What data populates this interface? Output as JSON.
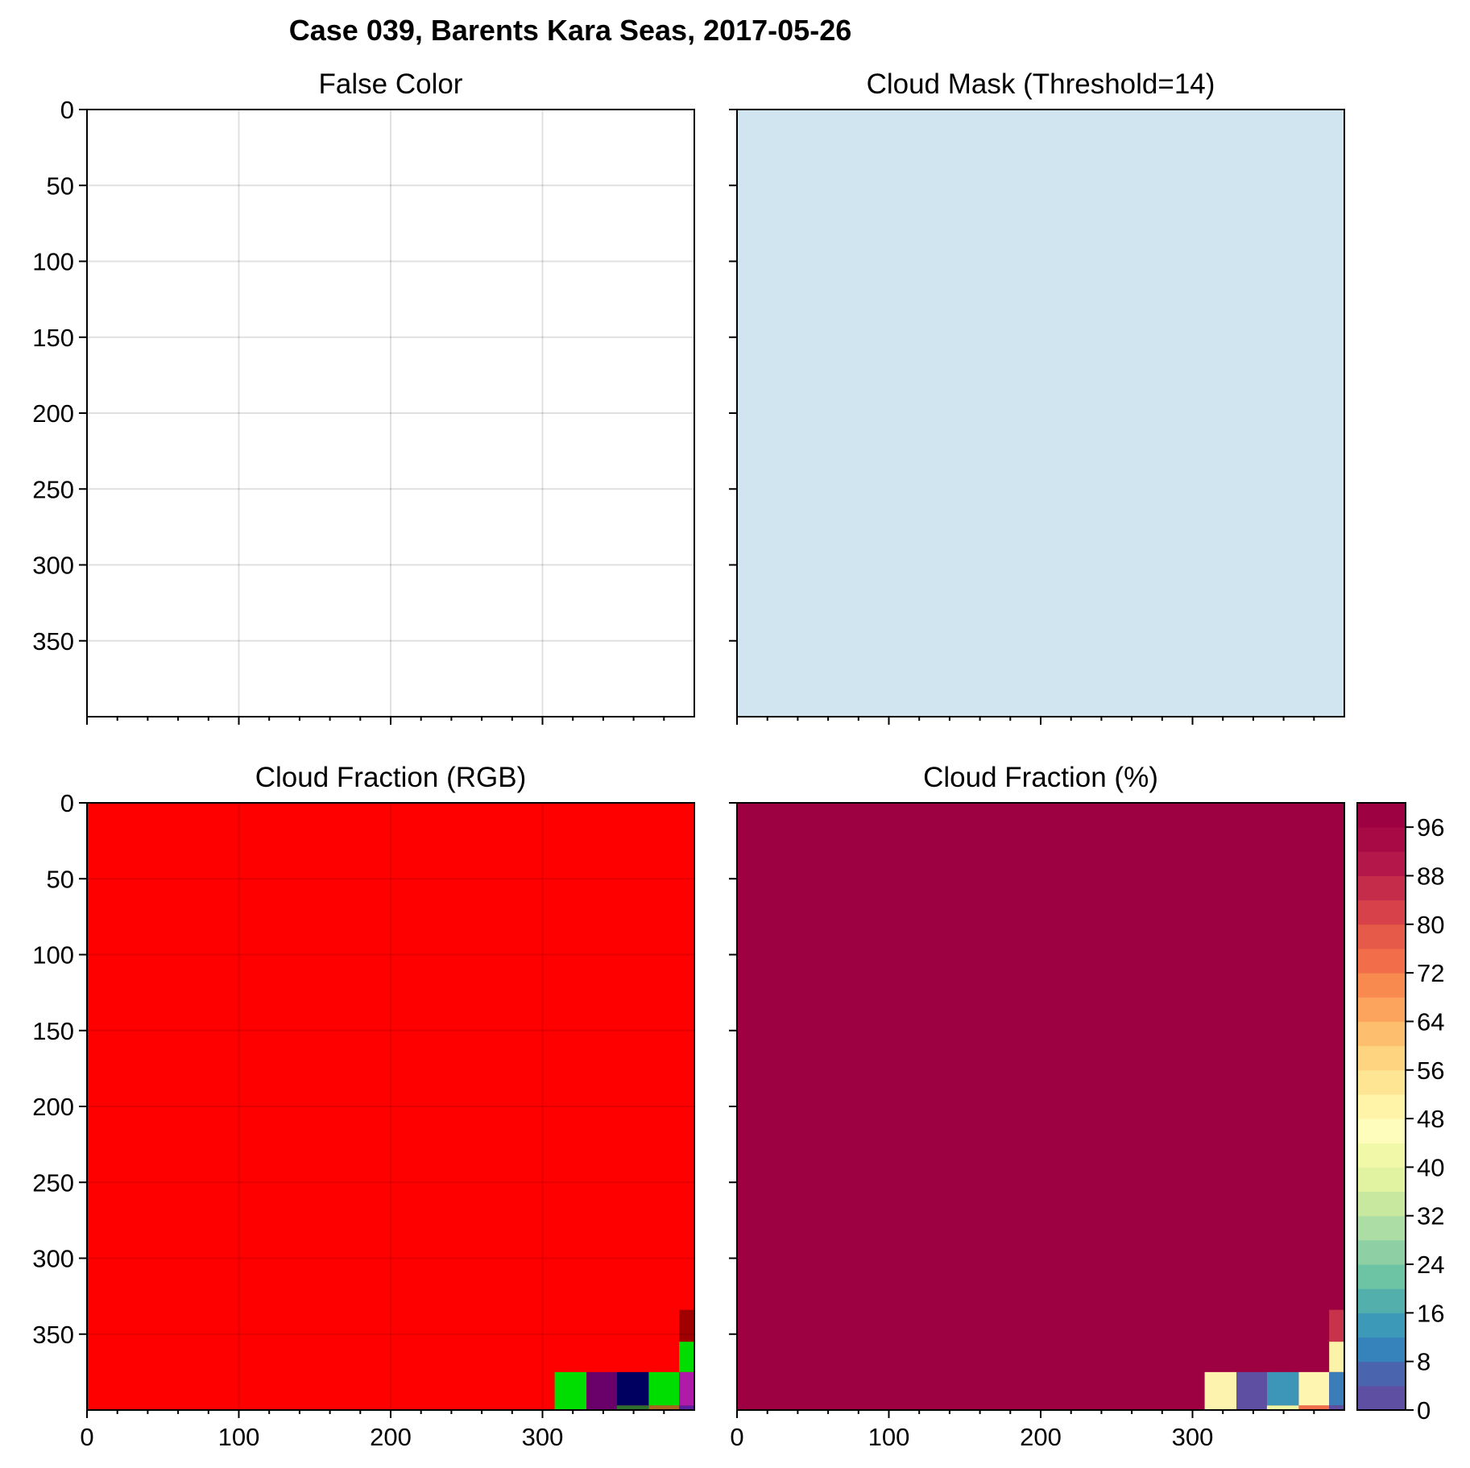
{
  "figure": {
    "title": "Case 039, Barents Kara Seas, 2017-05-26"
  },
  "chart_data": [
    {
      "type": "heatmap",
      "title": "False Color",
      "xlim": [
        0,
        400
      ],
      "ylim": [
        400,
        0
      ],
      "xticks": [
        0,
        100,
        200,
        300
      ],
      "xtick_labels": [],
      "yticks": [
        0,
        50,
        100,
        150,
        200,
        250,
        300,
        350
      ],
      "ytick_labels": [
        "0",
        "50",
        "100",
        "150",
        "200",
        "250",
        "300",
        "350"
      ],
      "grid": true,
      "background_color": "#ffffff",
      "cells": []
    },
    {
      "type": "heatmap",
      "title": "Cloud Mask (Threshold=14)",
      "xlim": [
        0,
        400
      ],
      "ylim": [
        400,
        0
      ],
      "xticks": [
        0,
        100,
        200,
        300
      ],
      "xtick_labels": [],
      "yticks": [
        0,
        50,
        100,
        150,
        200,
        250,
        300,
        350
      ],
      "ytick_labels": [],
      "grid": false,
      "background_color": "#d1e5f0",
      "cells": []
    },
    {
      "type": "heatmap",
      "title": "Cloud Fraction (RGB)",
      "xlim": [
        0,
        400
      ],
      "ylim": [
        400,
        0
      ],
      "xticks": [
        0,
        100,
        200,
        300
      ],
      "xtick_labels": [
        "0",
        "100",
        "200",
        "300"
      ],
      "yticks": [
        0,
        50,
        100,
        150,
        200,
        250,
        300,
        350
      ],
      "ytick_labels": [
        "0",
        "50",
        "100",
        "150",
        "200",
        "250",
        "300",
        "350"
      ],
      "grid": true,
      "background_color": "#ff0000",
      "cells": [
        {
          "x": 390,
          "y": 334,
          "w": 10,
          "h": 21,
          "color": "#a00000"
        },
        {
          "x": 390,
          "y": 355,
          "w": 10,
          "h": 20,
          "color": "#00dd00"
        },
        {
          "x": 308,
          "y": 375,
          "w": 21,
          "h": 25,
          "color": "#00dd00"
        },
        {
          "x": 329,
          "y": 375,
          "w": 20,
          "h": 25,
          "color": "#6a006a"
        },
        {
          "x": 349,
          "y": 375,
          "w": 21,
          "h": 22,
          "color": "#000060"
        },
        {
          "x": 349,
          "y": 397,
          "w": 21,
          "h": 3,
          "color": "#2e6e2e"
        },
        {
          "x": 370,
          "y": 375,
          "w": 20,
          "h": 22,
          "color": "#00dd00"
        },
        {
          "x": 370,
          "y": 397,
          "w": 20,
          "h": 3,
          "color": "#a66820"
        },
        {
          "x": 390,
          "y": 375,
          "w": 10,
          "h": 22,
          "color": "#b01aa8"
        },
        {
          "x": 390,
          "y": 397,
          "w": 10,
          "h": 3,
          "color": "#5a20a0"
        }
      ]
    },
    {
      "type": "heatmap",
      "title": "Cloud Fraction (%)",
      "xlim": [
        0,
        400
      ],
      "ylim": [
        400,
        0
      ],
      "xticks": [
        0,
        100,
        200,
        300
      ],
      "xtick_labels": [
        "0",
        "100",
        "200",
        "300"
      ],
      "yticks": [
        0,
        50,
        100,
        150,
        200,
        250,
        300,
        350
      ],
      "ytick_labels": [],
      "grid": false,
      "background_color": "#9e0142",
      "cells": [
        {
          "x": 390,
          "y": 334,
          "w": 10,
          "h": 21,
          "color": "#c8334c"
        },
        {
          "x": 390,
          "y": 355,
          "w": 10,
          "h": 20,
          "color": "#fbf4a8"
        },
        {
          "x": 308,
          "y": 375,
          "w": 21,
          "h": 25,
          "color": "#fdf2ae"
        },
        {
          "x": 329,
          "y": 375,
          "w": 20,
          "h": 25,
          "color": "#5e4fa2"
        },
        {
          "x": 349,
          "y": 375,
          "w": 21,
          "h": 22,
          "color": "#3d95b8"
        },
        {
          "x": 349,
          "y": 397,
          "w": 21,
          "h": 3,
          "color": "#edf6a2"
        },
        {
          "x": 370,
          "y": 375,
          "w": 20,
          "h": 22,
          "color": "#fef6b0"
        },
        {
          "x": 370,
          "y": 397,
          "w": 20,
          "h": 3,
          "color": "#f26d4a"
        },
        {
          "x": 390,
          "y": 375,
          "w": 10,
          "h": 22,
          "color": "#3a7db8"
        },
        {
          "x": 390,
          "y": 397,
          "w": 10,
          "h": 3,
          "color": "#5e4fa2"
        }
      ],
      "colorbar": {
        "min": 0,
        "max": 100,
        "step": 4,
        "ticks": [
          0,
          8,
          16,
          24,
          32,
          40,
          48,
          56,
          64,
          72,
          80,
          88,
          96
        ],
        "tick_labels": [
          "0",
          "8",
          "16",
          "24",
          "32",
          "40",
          "48",
          "56",
          "64",
          "72",
          "80",
          "88",
          "96"
        ],
        "colors": [
          "#5e4fa2",
          "#4a65ad",
          "#3682ba",
          "#3d99b8",
          "#53afab",
          "#6dc4a4",
          "#8ed0a4",
          "#abdda4",
          "#c8e8a0",
          "#e1f3a0",
          "#f1f9a8",
          "#fefdbc",
          "#fff4a8",
          "#fee593",
          "#fed481",
          "#fdbe6e",
          "#fca45e",
          "#f88a50",
          "#f26d4a",
          "#e55a49",
          "#d7424a",
          "#c42c4a",
          "#b4184a",
          "#a80a45",
          "#9e0142"
        ]
      }
    }
  ]
}
